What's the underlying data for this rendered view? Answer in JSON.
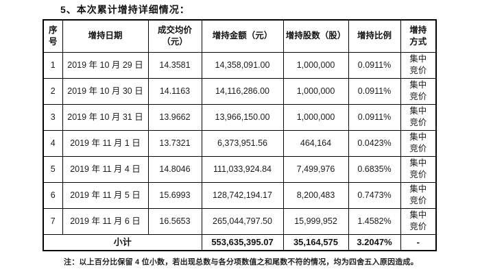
{
  "page": {
    "title": "5、本次累计增持详细情况：",
    "note": "注：以上百分比保留 4 位小数，若出现总数与各分项数值之和尾数不符的情况，均为四舍五入原因造成。"
  },
  "table": {
    "headers": {
      "no": "序\n号",
      "date": "增持日期",
      "price": "成交均价\n（元）",
      "amount": "增持金额（元）",
      "shares": "增持股数（股）",
      "ratio": "增持比例",
      "method": "增持\n方式"
    },
    "rows": [
      {
        "no": "1",
        "date": "2019 年 10 月 29 日",
        "price": "14.3581",
        "amount": "14,358,091.00",
        "shares": "1,000,000",
        "ratio": "0.0911%",
        "method": "集中\n竞价"
      },
      {
        "no": "2",
        "date": "2019 年 10 月 30 日",
        "price": "14.1163",
        "amount": "14,116,286.00",
        "shares": "1,000,000",
        "ratio": "0.0911%",
        "method": "集中\n竞价"
      },
      {
        "no": "3",
        "date": "2019 年 10 月 31 日",
        "price": "13.9662",
        "amount": "13,966,150.00",
        "shares": "1,000,000",
        "ratio": "0.0911%",
        "method": "集中\n竞价"
      },
      {
        "no": "4",
        "date": "2019 年 11 月 1 日",
        "price": "13.7321",
        "amount": "6,373,951.56",
        "shares": "464,164",
        "ratio": "0.0423%",
        "method": "集中\n竞价"
      },
      {
        "no": "5",
        "date": "2019 年 11 月 4 日",
        "price": "14.8046",
        "amount": "111,033,924.84",
        "shares": "7,499,976",
        "ratio": "0.6835%",
        "method": "集中\n竞价"
      },
      {
        "no": "6",
        "date": "2019 年 11 月 5 日",
        "price": "15.6993",
        "amount": "128,742,194.17",
        "shares": "8,200,483",
        "ratio": "0.7473%",
        "method": "集中\n竞价"
      },
      {
        "no": "7",
        "date": "2019 年 11 月 6 日",
        "price": "16.5653",
        "amount": "265,044,797.50",
        "shares": "15,999,952",
        "ratio": "1.4582%",
        "method": "集中\n竞价"
      }
    ],
    "subtotal": {
      "label": "小计",
      "amount": "553,635,395.07",
      "shares": "35,164,575",
      "ratio": "3.2047%",
      "method": "-"
    }
  }
}
